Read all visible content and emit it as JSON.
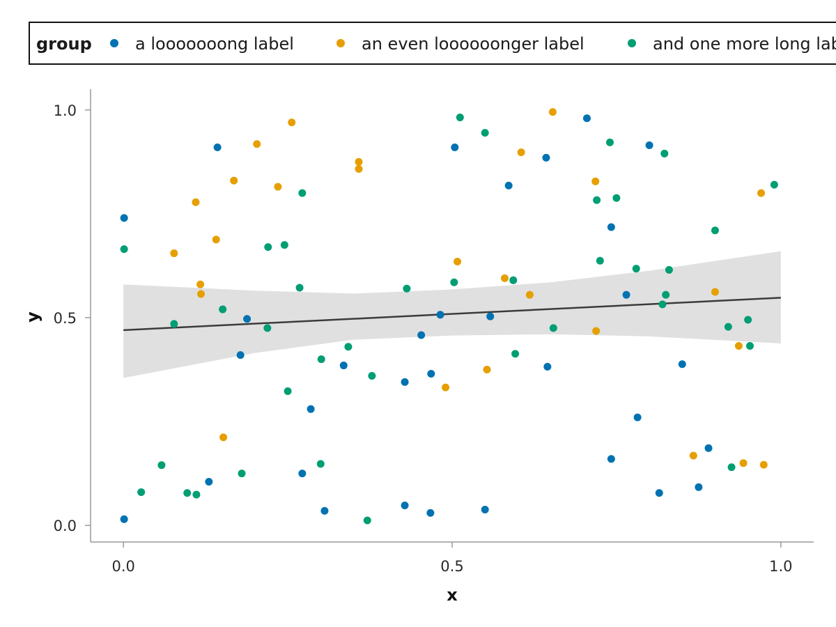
{
  "chart_data": {
    "type": "scatter",
    "title": "",
    "xlabel": "x",
    "ylabel": "y",
    "xlim": [
      -0.05,
      1.05
    ],
    "ylim": [
      -0.04,
      1.05
    ],
    "xticks": [
      0.0,
      0.5,
      1.0
    ],
    "yticks": [
      0.0,
      0.5,
      1.0
    ],
    "xtick_labels": [
      "0.0",
      "0.5",
      "1.0"
    ],
    "ytick_labels": [
      "0.0",
      "0.5",
      "1.0"
    ],
    "grid": false,
    "legend": {
      "position": "top",
      "title": "group",
      "entries": [
        "a looooooong label",
        "an even loooooonger label",
        "and one more long label"
      ]
    },
    "series": [
      {
        "name": "a looooooong label",
        "color": "#0072B2",
        "points": [
          [
            0.001,
            0.74
          ],
          [
            0.001,
            0.015
          ],
          [
            0.13,
            0.105
          ],
          [
            0.143,
            0.91
          ],
          [
            0.178,
            0.41
          ],
          [
            0.188,
            0.497
          ],
          [
            0.272,
            0.125
          ],
          [
            0.285,
            0.28
          ],
          [
            0.306,
            0.035
          ],
          [
            0.335,
            0.385
          ],
          [
            0.428,
            0.345
          ],
          [
            0.428,
            0.048
          ],
          [
            0.453,
            0.458
          ],
          [
            0.467,
            0.03
          ],
          [
            0.468,
            0.365
          ],
          [
            0.482,
            0.507
          ],
          [
            0.504,
            0.91
          ],
          [
            0.55,
            0.038
          ],
          [
            0.558,
            0.503
          ],
          [
            0.586,
            0.818
          ],
          [
            0.643,
            0.885
          ],
          [
            0.645,
            0.382
          ],
          [
            0.705,
            0.98
          ],
          [
            0.742,
            0.718
          ],
          [
            0.742,
            0.16
          ],
          [
            0.765,
            0.555
          ],
          [
            0.782,
            0.26
          ],
          [
            0.8,
            0.915
          ],
          [
            0.815,
            0.078
          ],
          [
            0.85,
            0.388
          ],
          [
            0.875,
            0.092
          ],
          [
            0.89,
            0.186
          ]
        ]
      },
      {
        "name": "an even loooooonger label",
        "color": "#E69F00",
        "points": [
          [
            0.077,
            0.655
          ],
          [
            0.11,
            0.778
          ],
          [
            0.117,
            0.58
          ],
          [
            0.118,
            0.557
          ],
          [
            0.141,
            0.688
          ],
          [
            0.152,
            0.212
          ],
          [
            0.168,
            0.83
          ],
          [
            0.203,
            0.918
          ],
          [
            0.235,
            0.815
          ],
          [
            0.256,
            0.97
          ],
          [
            0.358,
            0.875
          ],
          [
            0.358,
            0.858
          ],
          [
            0.49,
            0.332
          ],
          [
            0.508,
            0.635
          ],
          [
            0.553,
            0.375
          ],
          [
            0.58,
            0.595
          ],
          [
            0.605,
            0.898
          ],
          [
            0.618,
            0.555
          ],
          [
            0.653,
            0.995
          ],
          [
            0.718,
            0.828
          ],
          [
            0.719,
            0.468
          ],
          [
            0.867,
            0.168
          ],
          [
            0.9,
            0.562
          ],
          [
            0.936,
            0.432
          ],
          [
            0.943,
            0.15
          ],
          [
            0.97,
            0.8
          ],
          [
            0.974,
            0.146
          ]
        ]
      },
      {
        "name": "and one more long label",
        "color": "#009E73",
        "points": [
          [
            0.001,
            0.665
          ],
          [
            0.027,
            0.08
          ],
          [
            0.058,
            0.145
          ],
          [
            0.077,
            0.485
          ],
          [
            0.097,
            0.078
          ],
          [
            0.111,
            0.074
          ],
          [
            0.151,
            0.52
          ],
          [
            0.18,
            0.125
          ],
          [
            0.219,
            0.475
          ],
          [
            0.22,
            0.67
          ],
          [
            0.245,
            0.675
          ],
          [
            0.25,
            0.323
          ],
          [
            0.268,
            0.572
          ],
          [
            0.272,
            0.8
          ],
          [
            0.3,
            0.148
          ],
          [
            0.301,
            0.4
          ],
          [
            0.342,
            0.43
          ],
          [
            0.371,
            0.012
          ],
          [
            0.378,
            0.36
          ],
          [
            0.431,
            0.57
          ],
          [
            0.503,
            0.585
          ],
          [
            0.512,
            0.982
          ],
          [
            0.55,
            0.945
          ],
          [
            0.593,
            0.59
          ],
          [
            0.596,
            0.413
          ],
          [
            0.654,
            0.475
          ],
          [
            0.72,
            0.783
          ],
          [
            0.725,
            0.637
          ],
          [
            0.74,
            0.922
          ],
          [
            0.75,
            0.788
          ],
          [
            0.78,
            0.618
          ],
          [
            0.82,
            0.532
          ],
          [
            0.823,
            0.895
          ],
          [
            0.825,
            0.555
          ],
          [
            0.83,
            0.615
          ],
          [
            0.9,
            0.71
          ],
          [
            0.92,
            0.478
          ],
          [
            0.925,
            0.14
          ],
          [
            0.95,
            0.495
          ],
          [
            0.953,
            0.432
          ],
          [
            0.99,
            0.82
          ]
        ]
      }
    ],
    "trend": {
      "type": "linear",
      "color": "#3b3b3b",
      "band_color": "#e0e0e0",
      "line": [
        [
          0.0,
          0.47
        ],
        [
          1.0,
          0.548
        ]
      ],
      "band_lower": [
        [
          0.0,
          0.355
        ],
        [
          0.2,
          0.415
        ],
        [
          0.35,
          0.447
        ],
        [
          0.5,
          0.457
        ],
        [
          0.65,
          0.46
        ],
        [
          0.8,
          0.455
        ],
        [
          1.0,
          0.438
        ]
      ],
      "band_upper": [
        [
          0.0,
          0.58
        ],
        [
          0.2,
          0.565
        ],
        [
          0.35,
          0.558
        ],
        [
          0.5,
          0.568
        ],
        [
          0.65,
          0.585
        ],
        [
          0.8,
          0.613
        ],
        [
          1.0,
          0.66
        ]
      ]
    }
  }
}
